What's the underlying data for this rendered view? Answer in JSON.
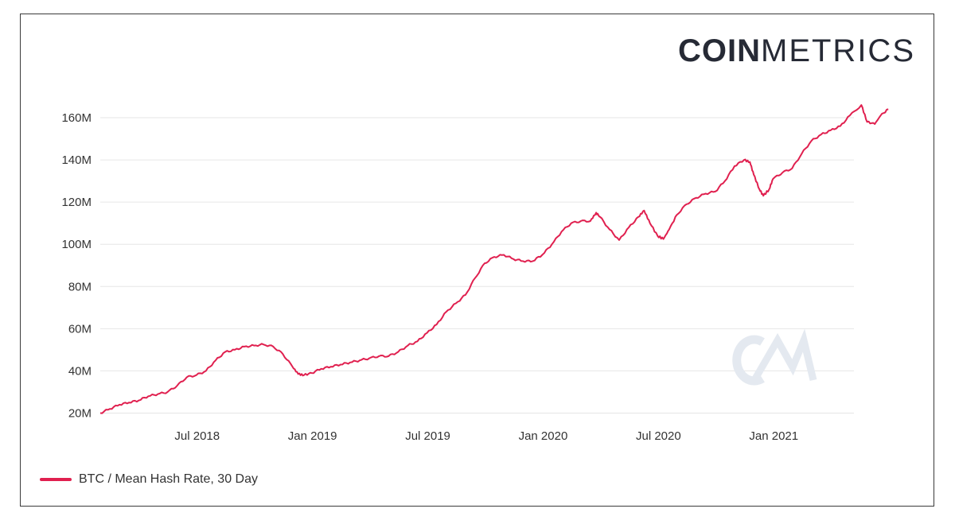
{
  "brand": {
    "logo_bold": "COIN",
    "logo_light": "METRICS",
    "watermark": "CM"
  },
  "colors": {
    "series": "#e0204f",
    "grid": "#e6e6e6",
    "watermark": "#e4e9f0"
  },
  "chart_data": {
    "type": "line",
    "title": "",
    "xlabel": "",
    "ylabel": "",
    "ylim": [
      20,
      165
    ],
    "y_ticks": [
      20,
      40,
      60,
      80,
      100,
      120,
      140,
      160
    ],
    "y_tick_labels": [
      "20M",
      "40M",
      "60M",
      "80M",
      "100M",
      "120M",
      "140M",
      "160M"
    ],
    "x_range": [
      0,
      39
    ],
    "x_ticks": [
      5,
      11,
      17,
      23,
      29,
      35
    ],
    "x_tick_labels": [
      "Jul 2018",
      "Jan 2019",
      "Jul 2019",
      "Jan 2020",
      "Jul 2020",
      "Jan 2021"
    ],
    "legend_position": "bottom-left",
    "grid": true,
    "series": [
      {
        "name": "BTC / Mean Hash Rate, 30 Day",
        "unit": "M",
        "x_note": "months since Jan 1, 2018",
        "points": [
          [
            0.0,
            20
          ],
          [
            0.5,
            22
          ],
          [
            1.0,
            24
          ],
          [
            1.5,
            25
          ],
          [
            2.0,
            26
          ],
          [
            2.5,
            28
          ],
          [
            3.0,
            29
          ],
          [
            3.5,
            30
          ],
          [
            4.0,
            33
          ],
          [
            4.5,
            37
          ],
          [
            5.0,
            38
          ],
          [
            5.5,
            40
          ],
          [
            6.0,
            45
          ],
          [
            6.5,
            49
          ],
          [
            7.0,
            50
          ],
          [
            7.5,
            51.5
          ],
          [
            8.0,
            52
          ],
          [
            8.5,
            52.5
          ],
          [
            9.0,
            51.5
          ],
          [
            9.5,
            48
          ],
          [
            10.0,
            42
          ],
          [
            10.3,
            38.5
          ],
          [
            10.6,
            38
          ],
          [
            11.0,
            39
          ],
          [
            11.5,
            41
          ],
          [
            12.0,
            42
          ],
          [
            12.5,
            43
          ],
          [
            13.0,
            44
          ],
          [
            13.5,
            45
          ],
          [
            14.0,
            46
          ],
          [
            14.5,
            47
          ],
          [
            15.0,
            47
          ],
          [
            15.5,
            49
          ],
          [
            16.0,
            52
          ],
          [
            16.5,
            54
          ],
          [
            17.0,
            58
          ],
          [
            17.5,
            62
          ],
          [
            18.0,
            68
          ],
          [
            18.5,
            72
          ],
          [
            19.0,
            76
          ],
          [
            19.5,
            84
          ],
          [
            20.0,
            91
          ],
          [
            20.5,
            94
          ],
          [
            21.0,
            95
          ],
          [
            21.5,
            93
          ],
          [
            22.0,
            92
          ],
          [
            22.5,
            92
          ],
          [
            23.0,
            95
          ],
          [
            23.5,
            100
          ],
          [
            24.0,
            106
          ],
          [
            24.5,
            110
          ],
          [
            25.0,
            111
          ],
          [
            25.5,
            111
          ],
          [
            25.8,
            115
          ],
          [
            26.0,
            113
          ],
          [
            26.5,
            107
          ],
          [
            27.0,
            102
          ],
          [
            27.5,
            108
          ],
          [
            28.0,
            113
          ],
          [
            28.3,
            116
          ],
          [
            28.6,
            110
          ],
          [
            29.0,
            104
          ],
          [
            29.3,
            102.5
          ],
          [
            29.6,
            107
          ],
          [
            30.0,
            114
          ],
          [
            30.5,
            119
          ],
          [
            31.0,
            122
          ],
          [
            31.5,
            124
          ],
          [
            32.0,
            125
          ],
          [
            32.5,
            130
          ],
          [
            33.0,
            137
          ],
          [
            33.5,
            140
          ],
          [
            33.8,
            139
          ],
          [
            34.0,
            133
          ],
          [
            34.3,
            126
          ],
          [
            34.5,
            123
          ],
          [
            34.8,
            126
          ],
          [
            35.0,
            131
          ],
          [
            35.5,
            134
          ],
          [
            36.0,
            136
          ],
          [
            36.5,
            143
          ],
          [
            37.0,
            149
          ],
          [
            37.5,
            152
          ],
          [
            38.0,
            154
          ],
          [
            38.5,
            156
          ],
          [
            39.0,
            161
          ],
          [
            39.6,
            166
          ],
          [
            39.9,
            158
          ],
          [
            40.3,
            157
          ],
          [
            40.6,
            161
          ],
          [
            41.0,
            164
          ]
        ]
      }
    ]
  }
}
